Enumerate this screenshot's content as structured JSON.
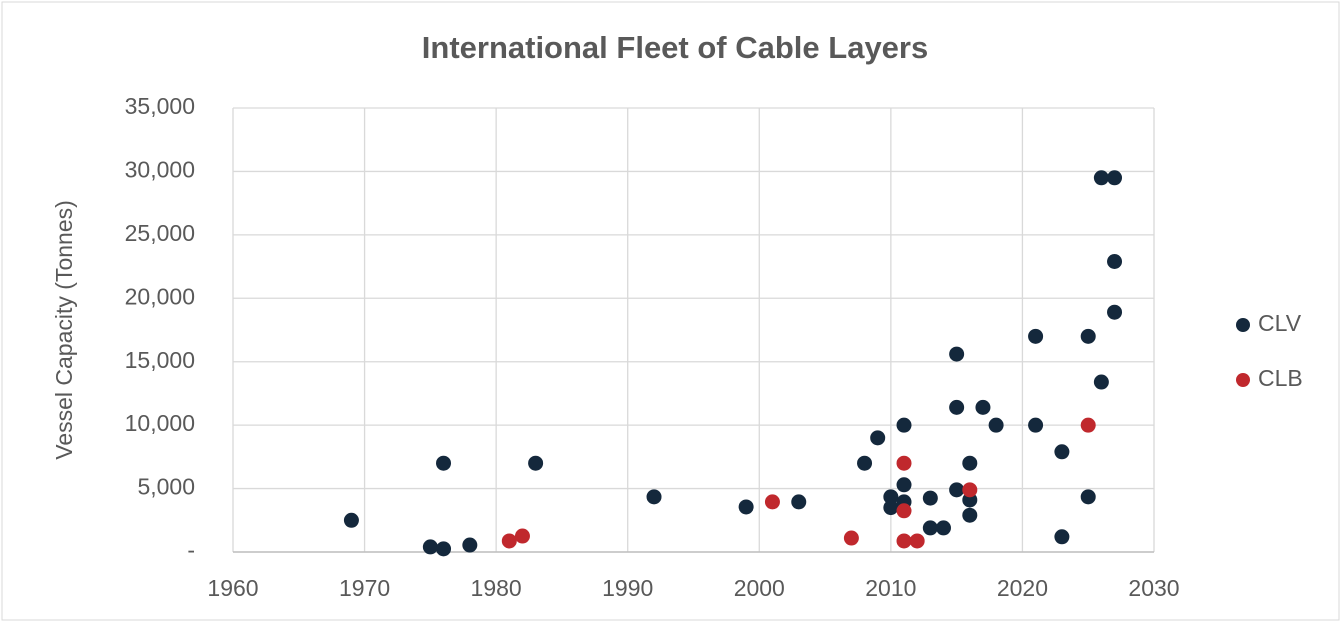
{
  "chart_data": {
    "type": "scatter",
    "title": "International Fleet of Cable Layers",
    "ylabel": "Vessel Capacity (Tonnes)",
    "xlim": [
      1960,
      2030
    ],
    "xticks": [
      1960,
      1970,
      1980,
      1990,
      2000,
      2010,
      2020,
      2030
    ],
    "ylim": [
      0,
      35000
    ],
    "yticks": [
      {
        "value": 0,
        "label": "-"
      },
      {
        "value": 5000,
        "label": "5,000"
      },
      {
        "value": 10000,
        "label": "10,000"
      },
      {
        "value": 15000,
        "label": "15,000"
      },
      {
        "value": 20000,
        "label": "20,000"
      },
      {
        "value": 25000,
        "label": "25,000"
      },
      {
        "value": 30000,
        "label": "30,000"
      },
      {
        "value": 35000,
        "label": "35,000"
      }
    ],
    "grid": true,
    "legend": "right",
    "series": [
      {
        "name": "CLV",
        "color": "#14283c",
        "x": [
          1969,
          1975,
          1976,
          1976,
          1978,
          1983,
          1992,
          1999,
          2003,
          2008,
          2009,
          2010,
          2010,
          2011,
          2011,
          2011,
          2013,
          2013,
          2014,
          2015,
          2015,
          2015,
          2016,
          2016,
          2016,
          2017,
          2018,
          2021,
          2021,
          2023,
          2023,
          2025,
          2025,
          2026,
          2026,
          2027,
          2027,
          2027
        ],
        "values": [
          2500,
          400,
          250,
          7000,
          550,
          7000,
          4350,
          3550,
          3950,
          7000,
          9000,
          4350,
          3500,
          10000,
          5300,
          3950,
          4250,
          1900,
          1900,
          15600,
          11400,
          4900,
          7000,
          4100,
          2900,
          11400,
          10000,
          17000,
          10000,
          7900,
          1200,
          17000,
          4350,
          29500,
          13400,
          29500,
          22900,
          18900
        ]
      },
      {
        "name": "CLB",
        "color": "#c0282d",
        "x": [
          1981,
          1982,
          2001,
          2007,
          2011,
          2011,
          2011,
          2012,
          2016,
          2025
        ],
        "values": [
          870,
          1260,
          3950,
          1100,
          7000,
          3250,
          870,
          870,
          4900,
          10000
        ]
      }
    ]
  }
}
